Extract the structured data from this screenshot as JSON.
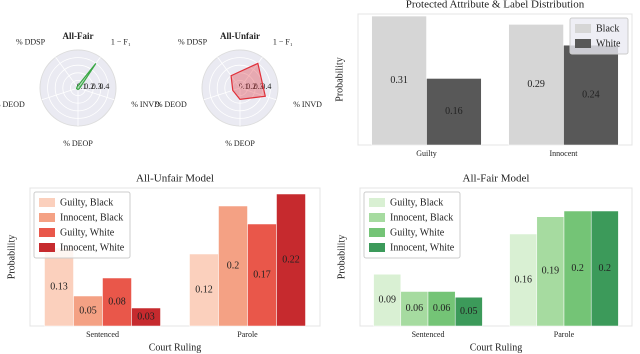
{
  "chart_data": [
    {
      "type": "radar",
      "title": "All-Fair",
      "axes": [
        "1 − F₁",
        "% INVD",
        "% DEOP",
        "% DEOD",
        "% DDSP"
      ],
      "values": [
        0.4,
        0.02,
        0.02,
        0.02,
        0.02
      ],
      "color": "#3aa845",
      "rlim": [
        0,
        0.5
      ],
      "rticks": [
        0.1,
        0.2,
        0.3,
        0.4
      ]
    },
    {
      "type": "radar",
      "title": "All-Unfair",
      "axes": [
        "1 − F₁",
        "% INVD",
        "% DEOP",
        "% DEOD",
        "% DDSP"
      ],
      "values": [
        0.4,
        0.35,
        0.15,
        0.1,
        0.2
      ],
      "color": "#e0303a",
      "rlim": [
        0,
        0.5
      ],
      "rticks": [
        0.1,
        0.2,
        0.3,
        0.4
      ]
    },
    {
      "type": "bar",
      "title": "Protected Attribute & Label Distribution",
      "y_label": "Probability",
      "categories": [
        "Guilty",
        "Innocent"
      ],
      "series": [
        {
          "name": "Black",
          "color": "#d6d6d6",
          "values": [
            0.31,
            0.29
          ]
        },
        {
          "name": "White",
          "color": "#585858",
          "values": [
            0.16,
            0.24
          ]
        }
      ],
      "ylim": [
        0,
        0.315
      ],
      "legend": "upper right"
    },
    {
      "type": "bar",
      "title": "All-Unfair Model",
      "x_label": "Court Ruling",
      "y_label": "Probability",
      "categories": [
        "Sentenced",
        "Parole"
      ],
      "series": [
        {
          "name": "Guilty, Black",
          "color": "#fbd0bd",
          "values": [
            0.13,
            0.12
          ]
        },
        {
          "name": "Innocent, Black",
          "color": "#f4a184",
          "values": [
            0.05,
            0.2
          ]
        },
        {
          "name": "Guilty, White",
          "color": "#e9574a",
          "values": [
            0.08,
            0.17
          ]
        },
        {
          "name": "Innocent, White",
          "color": "#c62a2e",
          "values": [
            0.03,
            0.22
          ]
        }
      ],
      "ylim": [
        0,
        0.23
      ],
      "legend": "upper left"
    },
    {
      "type": "bar",
      "title": "All-Fair Model",
      "x_label": "Court Ruling",
      "y_label": "Probability",
      "categories": [
        "Sentenced",
        "Parole"
      ],
      "series": [
        {
          "name": "Guilty, Black",
          "color": "#d9f0d3",
          "values": [
            0.09,
            0.16
          ]
        },
        {
          "name": "Innocent, Black",
          "color": "#a6dba0",
          "values": [
            0.06,
            0.19
          ]
        },
        {
          "name": "Guilty, White",
          "color": "#74c476",
          "values": [
            0.06,
            0.2
          ]
        },
        {
          "name": "Innocent, White",
          "color": "#3c9a5a",
          "values": [
            0.05,
            0.2
          ]
        }
      ],
      "ylim": [
        0,
        0.24
      ],
      "legend": "upper left"
    }
  ]
}
